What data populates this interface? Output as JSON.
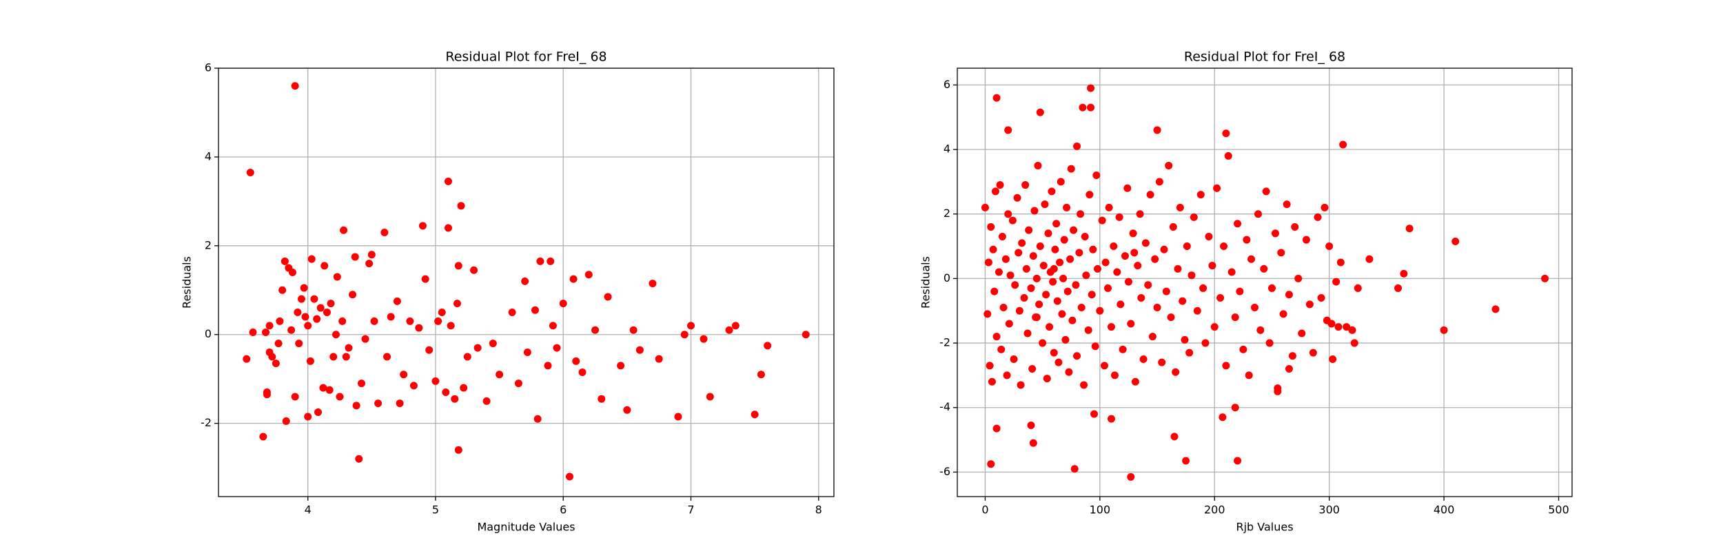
{
  "chart_data": [
    {
      "type": "scatter",
      "title": "Residual Plot for FreI_ 68",
      "x_label": "Magnitude Values",
      "y_label": "Residuals",
      "color": "#ff0000",
      "grid": true,
      "xlim": [
        3.3,
        8.12
      ],
      "ylim": [
        -3.65,
        6.0
      ],
      "xticks": [
        4,
        5,
        6,
        7,
        8
      ],
      "yticks": [
        -2,
        0,
        2,
        4,
        6
      ],
      "x": [
        3.52,
        3.55,
        3.57,
        3.65,
        3.67,
        3.68,
        3.68,
        3.7,
        3.7,
        3.72,
        3.75,
        3.77,
        3.78,
        3.8,
        3.82,
        3.83,
        3.85,
        3.87,
        3.88,
        3.9,
        3.9,
        3.92,
        3.93,
        3.95,
        3.97,
        3.98,
        4.0,
        4.0,
        4.02,
        4.03,
        4.05,
        4.07,
        4.08,
        4.1,
        4.12,
        4.13,
        4.15,
        4.17,
        4.18,
        4.2,
        4.22,
        4.23,
        4.25,
        4.27,
        4.28,
        4.3,
        4.32,
        4.35,
        4.37,
        4.38,
        4.4,
        4.42,
        4.45,
        4.48,
        4.5,
        4.52,
        4.55,
        4.6,
        4.62,
        4.65,
        4.7,
        4.72,
        4.75,
        4.8,
        4.83,
        4.87,
        4.9,
        4.92,
        4.95,
        5.0,
        5.02,
        5.05,
        5.08,
        5.1,
        5.1,
        5.12,
        5.15,
        5.17,
        5.18,
        5.18,
        5.2,
        5.22,
        5.25,
        5.3,
        5.33,
        5.4,
        5.45,
        5.5,
        5.6,
        5.65,
        5.7,
        5.72,
        5.78,
        5.8,
        5.82,
        5.88,
        5.9,
        5.92,
        5.95,
        6.0,
        6.05,
        6.08,
        6.1,
        6.15,
        6.2,
        6.25,
        6.3,
        6.35,
        6.45,
        6.5,
        6.55,
        6.6,
        6.7,
        6.75,
        6.9,
        6.95,
        7.0,
        7.1,
        7.15,
        7.3,
        7.35,
        7.5,
        7.55,
        7.6,
        7.9
      ],
      "values": [
        -0.55,
        3.65,
        0.05,
        -2.3,
        0.05,
        -1.3,
        -1.35,
        -0.4,
        0.2,
        -0.5,
        -0.65,
        -0.2,
        0.3,
        1.0,
        1.65,
        -1.95,
        1.5,
        0.1,
        1.4,
        5.6,
        -1.4,
        0.5,
        -0.2,
        0.8,
        1.05,
        0.4,
        -1.85,
        0.2,
        -0.6,
        1.7,
        0.8,
        0.35,
        -1.75,
        0.6,
        -1.2,
        1.55,
        0.5,
        -1.25,
        0.7,
        -0.5,
        0.0,
        1.3,
        -1.4,
        0.3,
        2.35,
        -0.5,
        -0.3,
        0.9,
        1.75,
        -1.6,
        -2.8,
        -1.1,
        -0.1,
        1.6,
        1.8,
        0.3,
        -1.55,
        2.3,
        -0.5,
        0.4,
        0.75,
        -1.55,
        -0.9,
        0.3,
        -1.15,
        0.15,
        2.45,
        1.25,
        -0.35,
        -1.05,
        0.3,
        0.5,
        -1.3,
        3.45,
        2.4,
        0.2,
        -1.45,
        0.7,
        -2.6,
        1.55,
        2.9,
        -1.2,
        -0.5,
        1.45,
        -0.3,
        -1.5,
        -0.2,
        -0.9,
        0.5,
        -1.1,
        1.2,
        -0.4,
        0.55,
        -1.9,
        1.65,
        -0.7,
        1.65,
        0.2,
        -0.3,
        0.7,
        -3.2,
        1.25,
        -0.6,
        -0.85,
        1.35,
        0.1,
        -1.45,
        0.85,
        -0.7,
        -1.7,
        0.1,
        -0.35,
        1.15,
        -0.55,
        -1.85,
        0.0,
        0.2,
        -0.1,
        -1.4,
        0.1,
        0.2,
        -1.8,
        -0.9,
        -0.25,
        0.0
      ]
    },
    {
      "type": "scatter",
      "title": "Residual Plot for FreI_ 68",
      "x_label": "Rjb Values",
      "y_label": "Residuals",
      "color": "#ff0000",
      "grid": true,
      "xlim": [
        -24.3,
        511.7
      ],
      "ylim": [
        -6.76,
        6.52
      ],
      "xticks": [
        0,
        100,
        200,
        300,
        400,
        500
      ],
      "yticks": [
        -6,
        -4,
        -2,
        0,
        2,
        4,
        6
      ],
      "x": [
        0,
        2,
        3,
        4,
        5,
        6,
        7,
        8,
        9,
        10,
        12,
        13,
        14,
        15,
        16,
        18,
        19,
        20,
        21,
        22,
        24,
        25,
        26,
        28,
        29,
        30,
        31,
        32,
        34,
        35,
        36,
        37,
        38,
        40,
        41,
        42,
        43,
        44,
        45,
        46,
        47,
        48,
        50,
        51,
        52,
        53,
        54,
        55,
        56,
        57,
        58,
        59,
        60,
        61,
        62,
        63,
        64,
        65,
        66,
        67,
        68,
        69,
        70,
        71,
        72,
        73,
        74,
        75,
        76,
        77,
        79,
        80,
        82,
        83,
        84,
        86,
        87,
        88,
        90,
        91,
        93,
        94,
        96,
        97,
        98,
        100,
        102,
        104,
        105,
        107,
        108,
        110,
        112,
        113,
        115,
        117,
        118,
        120,
        122,
        124,
        125,
        127,
        129,
        131,
        133,
        135,
        136,
        138,
        140,
        142,
        144,
        146,
        148,
        150,
        152,
        154,
        156,
        158,
        160,
        162,
        164,
        166,
        168,
        170,
        172,
        174,
        176,
        178,
        180,
        182,
        185,
        188,
        190,
        192,
        195,
        198,
        200,
        202,
        205,
        208,
        210,
        212,
        215,
        218,
        220,
        222,
        225,
        228,
        230,
        232,
        235,
        238,
        240,
        243,
        245,
        248,
        250,
        253,
        255,
        258,
        260,
        263,
        265,
        268,
        270,
        273,
        276,
        280,
        283,
        286,
        290,
        293,
        296,
        298,
        300,
        303,
        306,
        310,
        315,
        320,
        325,
        335,
        322,
        302,
        308,
        265,
        255,
        130,
        60,
        45,
        10,
        20,
        48,
        80,
        85,
        92,
        92,
        150,
        210,
        312,
        370,
        410,
        445,
        488,
        400,
        360,
        365,
        5,
        10,
        40,
        42,
        78,
        127,
        175,
        220,
        95,
        110,
        207,
        218,
        165
      ],
      "values": [
        2.2,
        -1.1,
        0.5,
        -2.7,
        1.6,
        -3.2,
        0.9,
        -0.4,
        2.7,
        -1.8,
        0.2,
        2.9,
        -2.2,
        1.3,
        -0.9,
        0.6,
        -3.0,
        2.0,
        -1.4,
        0.1,
        1.8,
        -2.5,
        -0.2,
        2.5,
        0.8,
        -1.0,
        -3.3,
        1.1,
        -0.6,
        2.9,
        0.3,
        -1.7,
        1.5,
        -0.3,
        -2.8,
        0.7,
        2.1,
        -1.2,
        0.0,
        3.5,
        -0.8,
        1.0,
        -2.0,
        0.4,
        2.3,
        -0.5,
        -3.1,
        1.4,
        -1.5,
        0.2,
        2.7,
        -0.1,
        -2.3,
        0.9,
        1.7,
        -0.7,
        -2.6,
        0.5,
        3.0,
        -1.1,
        0.0,
        1.2,
        -1.9,
        2.2,
        -0.4,
        -2.9,
        0.6,
        3.4,
        -1.3,
        1.5,
        -0.2,
        -2.4,
        0.8,
        2.0,
        -0.9,
        -3.3,
        1.3,
        0.1,
        -1.6,
        2.6,
        -0.5,
        0.9,
        -2.1,
        3.2,
        0.3,
        -1.0,
        1.8,
        -2.7,
        0.5,
        -0.3,
        2.2,
        -1.5,
        1.0,
        -3.0,
        0.2,
        1.9,
        -0.8,
        -2.2,
        0.7,
        2.8,
        -0.1,
        -1.4,
        1.4,
        -3.2,
        0.4,
        2.0,
        -0.6,
        -2.5,
        1.1,
        -0.2,
        2.6,
        -1.8,
        0.6,
        -0.9,
        3.0,
        -2.6,
        0.9,
        -0.4,
        3.5,
        -1.2,
        1.6,
        -2.9,
        0.3,
        2.2,
        -0.7,
        -1.9,
        1.0,
        -2.3,
        0.1,
        1.9,
        -1.0,
        2.6,
        -0.3,
        -2.0,
        1.3,
        0.4,
        -1.5,
        2.8,
        -0.6,
        1.0,
        -2.7,
        3.8,
        0.2,
        -1.2,
        1.7,
        -0.4,
        -2.2,
        1.2,
        -3.0,
        0.6,
        -0.9,
        2.0,
        -1.6,
        0.3,
        2.7,
        -2.0,
        -0.3,
        1.4,
        -3.5,
        0.8,
        -1.1,
        2.3,
        -0.5,
        -2.4,
        1.6,
        0.0,
        -1.7,
        1.2,
        -0.8,
        -2.3,
        1.9,
        -0.6,
        2.2,
        -1.3,
        1.0,
        -2.5,
        -0.1,
        0.5,
        -1.5,
        -1.6,
        -0.3,
        0.6,
        -2.0,
        -1.4,
        -1.5,
        -2.8,
        -3.4,
        0.8,
        0.3,
        -1.2,
        5.6,
        4.6,
        5.15,
        4.1,
        5.3,
        5.9,
        5.3,
        4.6,
        4.5,
        4.15,
        1.55,
        1.15,
        -0.95,
        0.0,
        -1.6,
        -0.3,
        0.15,
        -5.75,
        -4.65,
        -4.55,
        -5.1,
        -5.9,
        -6.15,
        -5.65,
        -5.65,
        -4.2,
        -4.35,
        -4.3,
        -4.0,
        -4.9
      ]
    }
  ]
}
